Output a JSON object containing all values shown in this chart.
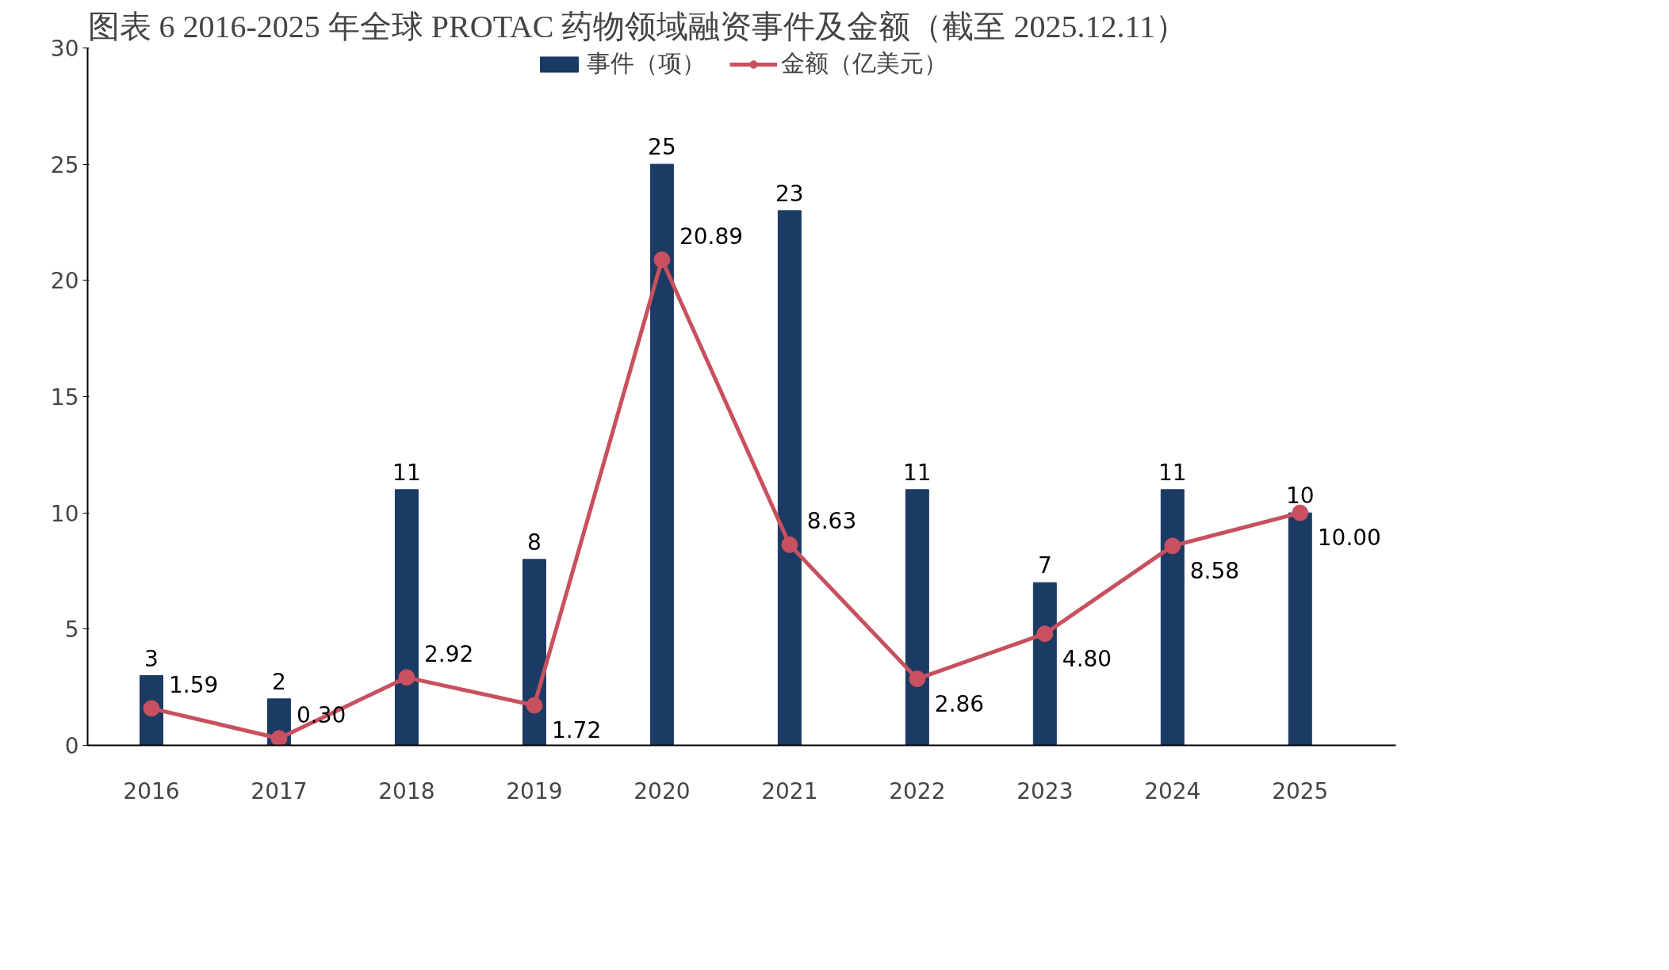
{
  "chart_data": {
    "type": "bar",
    "title": "图表  6 2016-2025 年全球 PROTAC 药物领域融资事件及金额（截至 2025.12.11）",
    "categories": [
      "2016",
      "2017",
      "2018",
      "2019",
      "2020",
      "2021",
      "2022",
      "2023",
      "2024",
      "2025"
    ],
    "series": [
      {
        "name": "事件（项）",
        "color": "#1b3a64",
        "values": [
          3,
          2,
          11,
          8,
          25,
          23,
          11,
          7,
          11,
          10
        ]
      },
      {
        "name": "金额（亿美元）",
        "type": "line",
        "color": "#c8505f",
        "marker": "circle",
        "values": [
          1.59,
          0.3,
          2.92,
          1.72,
          20.89,
          8.63,
          2.86,
          4.8,
          8.58,
          10.0
        ],
        "value_labels": [
          "1.59",
          "0.30",
          "2.92",
          "1.72",
          "20.89",
          "8.63",
          "2.86",
          "4.80",
          "8.58",
          "10.00"
        ]
      }
    ],
    "ylim": [
      0,
      30
    ],
    "yticks": [
      0,
      5,
      10,
      15,
      20,
      25,
      30
    ],
    "data_labels": true,
    "legend": "top",
    "grid": false
  }
}
